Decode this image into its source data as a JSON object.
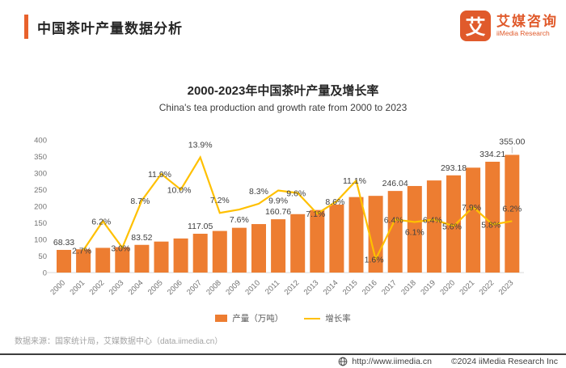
{
  "header": {
    "title": "中国茶叶产量数据分析"
  },
  "logo": {
    "glyph": "艾",
    "name_cn": "艾媒咨询",
    "name_en": "iiMedia Research"
  },
  "chart": {
    "title": "2000-2023年中国茶叶产量及增长率",
    "subtitle": "China's tea production and growth rate from 2000 to 2023"
  },
  "chart_data": {
    "type": "bar",
    "title": "2000-2023年中国茶叶产量及增长率",
    "categories": [
      "2000",
      "2001",
      "2002",
      "2003",
      "2004",
      "2005",
      "2006",
      "2007",
      "2008",
      "2009",
      "2010",
      "2011",
      "2012",
      "2013",
      "2014",
      "2015",
      "2016",
      "2017",
      "2018",
      "2019",
      "2020",
      "2021",
      "2022",
      "2023"
    ],
    "series": [
      {
        "name": "产量（万吨）",
        "type": "bar",
        "color": "#ed7d31",
        "values": [
          68.33,
          70.18,
          74.53,
          76.76,
          83.52,
          93.46,
          102.8,
          117.05,
          125.48,
          135.02,
          146.23,
          160.76,
          176.19,
          188.7,
          204.93,
          227.68,
          231.32,
          246.04,
          261.05,
          277.76,
          293.18,
          316.34,
          334.21,
          355.0
        ],
        "value_labels": [
          "68.33",
          "",
          "",
          "",
          "83.52",
          "",
          "",
          "117.05",
          "",
          "",
          "",
          "160.76",
          "",
          "",
          "",
          "",
          "",
          "246.04",
          "",
          "",
          "293.18",
          "",
          "334.21",
          "355.00"
        ]
      },
      {
        "name": "增长率",
        "type": "line",
        "color": "#ffc000",
        "values": [
          null,
          2.7,
          6.2,
          3.0,
          8.7,
          11.9,
          10.0,
          13.9,
          7.2,
          7.6,
          8.3,
          9.9,
          9.6,
          7.1,
          8.6,
          11.1,
          1.6,
          6.4,
          6.1,
          6.4,
          5.6,
          7.9,
          5.8,
          6.2
        ],
        "point_labels": [
          "",
          "2.7%",
          "6.2%",
          "3.0%",
          "8.7%",
          "11.9%",
          "10.0%",
          "13.9%",
          "7.2%",
          "7.6%",
          "8.3%",
          "9.9%",
          "9.6%",
          "7.1%",
          "8.6%",
          "11.1%",
          "1.6%",
          "6.4%",
          "6.1%",
          "6.4%",
          "5.6%",
          "7.9%",
          "5.8%",
          "6.2%"
        ]
      }
    ],
    "ylim": [
      0,
      400
    ],
    "yticks": [
      0,
      50,
      100,
      150,
      200,
      250,
      300,
      350,
      400
    ],
    "y2lim": [
      0,
      16
    ],
    "grid": false,
    "legend_position": "bottom"
  },
  "source": "数据来源：国家统计局，艾媒数据中心（data.iimedia.cn）",
  "footer": {
    "url": "http://www.iimedia.cn",
    "copyright": "©2024  iiMedia Research Inc"
  }
}
